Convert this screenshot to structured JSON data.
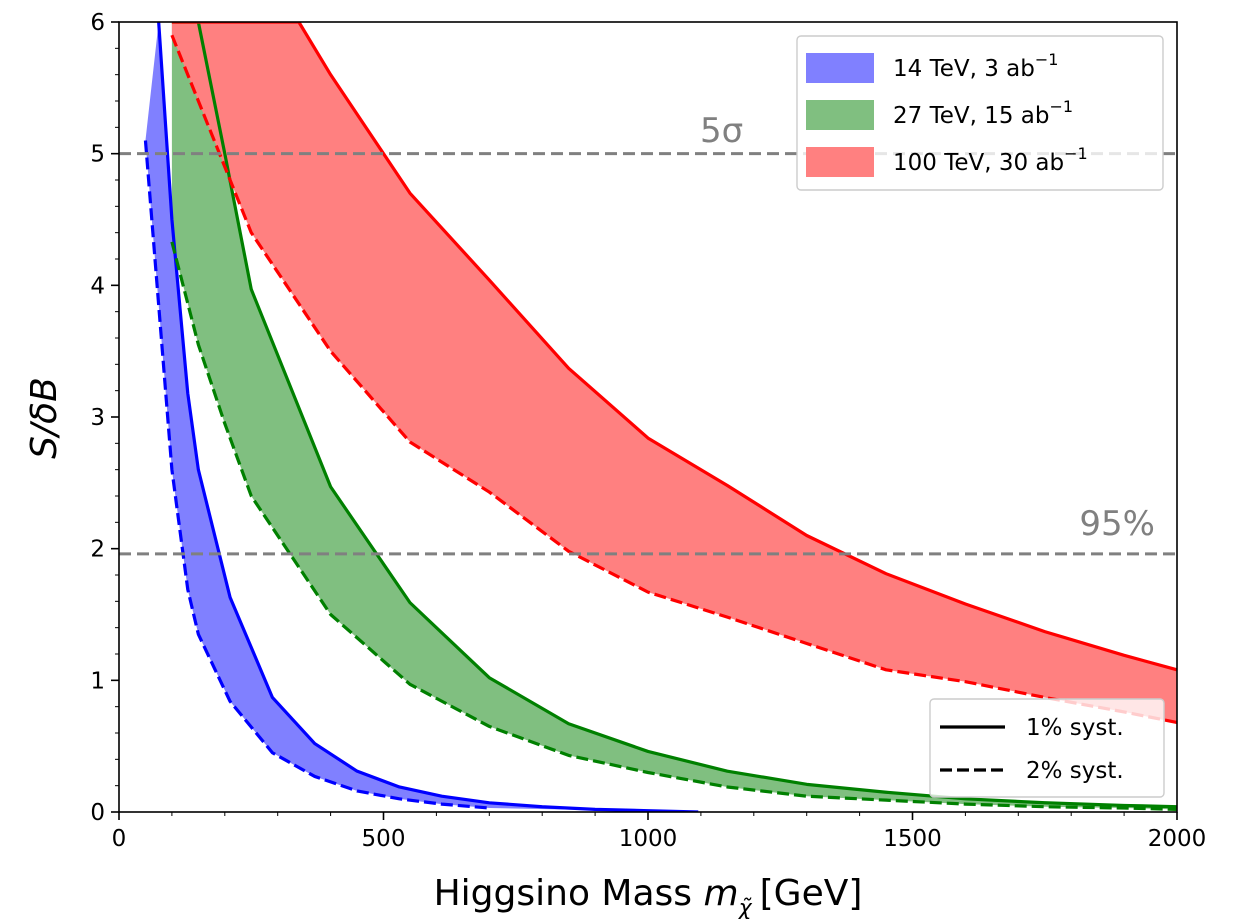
{
  "chart_data": {
    "type": "area",
    "xlabel": "Higgsino Mass",
    "xlabel_math": "m",
    "xlabel_sub": "χ̃",
    "xlabel_unit": "[GeV]",
    "ylabel": "S/δB",
    "xlim": [
      0,
      2000
    ],
    "ylim": [
      0,
      6
    ],
    "x_ticks": [
      0,
      500,
      1000,
      1500,
      2000
    ],
    "x_tick_labels": [
      "0",
      "500",
      "1000",
      "1500",
      "2000"
    ],
    "y_ticks": [
      0,
      1,
      2,
      3,
      4,
      5,
      6
    ],
    "y_tick_labels": [
      "0",
      "1",
      "2",
      "3",
      "4",
      "5",
      "6"
    ],
    "grid": false,
    "reference_lines": [
      {
        "y": 5.0,
        "label": "5σ",
        "color": "#808080"
      },
      {
        "y": 1.96,
        "label": "95%",
        "color": "#808080"
      }
    ],
    "series": [
      {
        "name": "14 TeV, 3 ab",
        "name_sup": "−1",
        "color": "#0000ff",
        "fill": "#8080ff",
        "upper": {
          "x": [
            75,
            100,
            130,
            150,
            210,
            290,
            370,
            450,
            530,
            610,
            700,
            800,
            900,
            1000,
            1095
          ],
          "y": [
            6.0,
            4.5,
            3.18,
            2.6,
            1.63,
            0.87,
            0.52,
            0.31,
            0.19,
            0.12,
            0.07,
            0.04,
            0.02,
            0.01,
            0.0
          ]
        },
        "lower": {
          "x": [
            50,
            100,
            130,
            150,
            210,
            290,
            370,
            450,
            530,
            610,
            700
          ],
          "y": [
            5.1,
            2.6,
            1.69,
            1.35,
            0.84,
            0.45,
            0.27,
            0.16,
            0.1,
            0.06,
            0.03
          ]
        }
      },
      {
        "name": "27 TeV, 15 ab",
        "name_sup": "−1",
        "color": "#008000",
        "fill": "#80bf80",
        "upper": {
          "x": [
            100,
            150,
            200,
            250,
            400,
            550,
            700,
            850,
            1000,
            1150,
            1300,
            1450,
            1600,
            1750,
            1900,
            2000
          ],
          "y": [
            6.0,
            6.0,
            5.0,
            3.97,
            2.47,
            1.59,
            1.02,
            0.67,
            0.46,
            0.31,
            0.21,
            0.15,
            0.1,
            0.07,
            0.05,
            0.04
          ]
        },
        "lower": {
          "x": [
            100,
            150,
            200,
            250,
            400,
            550,
            700,
            850,
            1000,
            1150,
            1300,
            1450,
            1600,
            1750,
            1900,
            2000
          ],
          "y": [
            4.33,
            3.55,
            2.95,
            2.4,
            1.5,
            0.97,
            0.65,
            0.43,
            0.3,
            0.19,
            0.12,
            0.09,
            0.06,
            0.04,
            0.03,
            0.02
          ]
        }
      },
      {
        "name": "100 TeV, 30 ab",
        "name_sup": "−1",
        "color": "#ff0000",
        "fill": "#ff8080",
        "upper": {
          "x": [
            100,
            250,
            340,
            400,
            550,
            700,
            850,
            1000,
            1150,
            1300,
            1450,
            1600,
            1750,
            1900,
            2000
          ],
          "y": [
            6.0,
            6.0,
            6.0,
            5.6,
            4.7,
            4.04,
            3.37,
            2.84,
            2.48,
            2.1,
            1.81,
            1.58,
            1.37,
            1.19,
            1.08
          ]
        },
        "lower": {
          "x": [
            100,
            250,
            400,
            550,
            700,
            850,
            1000,
            1150,
            1300,
            1450,
            1600,
            1750,
            1900,
            2000
          ],
          "y": [
            5.9,
            4.4,
            3.5,
            2.81,
            2.43,
            1.98,
            1.67,
            1.48,
            1.28,
            1.08,
            0.99,
            0.87,
            0.76,
            0.68
          ]
        }
      }
    ],
    "legend": {
      "placement": "upper right",
      "entries": [
        {
          "label": "14 TeV, 3 ab",
          "sup": "−1",
          "color": "#8080ff"
        },
        {
          "label": "27 TeV, 15 ab",
          "sup": "−1",
          "color": "#80bf80"
        },
        {
          "label": "100 TeV, 30 ab",
          "sup": "−1",
          "color": "#ff8080"
        }
      ]
    },
    "style_legend": {
      "placement": "lower right",
      "entries": [
        {
          "label": "1% syst.",
          "linestyle": "solid"
        },
        {
          "label": "2% syst.",
          "linestyle": "dashed"
        }
      ]
    }
  }
}
